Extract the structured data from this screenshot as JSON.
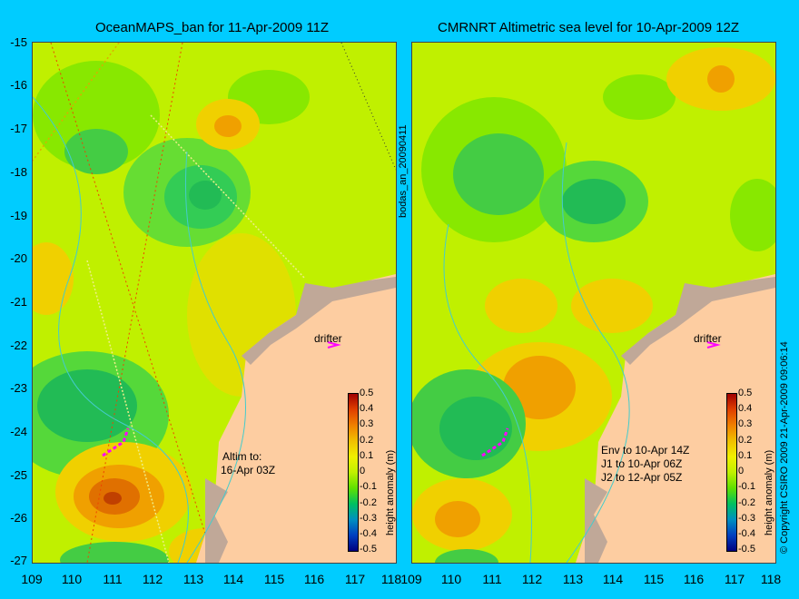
{
  "left_panel": {
    "title": "OceanMAPS_ban for 11-Apr-2009 11Z",
    "side_label": "bodas_an_20090411",
    "drifter_label": "drifter",
    "altim_label": "Altim to:",
    "altim_date": "16-Apr 03Z"
  },
  "right_panel": {
    "title": "CMRNRT Altimetric sea level  for 10-Apr-2009 12Z",
    "drifter_label": "drifter",
    "env_lines": [
      "Env to 10-Apr 14Z",
      "J1 to 10-Apr 06Z",
      "J2 to 12-Apr 05Z"
    ]
  },
  "axes": {
    "y_ticks": [
      "-15",
      "-16",
      "-17",
      "-18",
      "-19",
      "-20",
      "-21",
      "-22",
      "-23",
      "-24",
      "-25",
      "-26",
      "-27"
    ],
    "x_ticks_left": [
      "109",
      "110",
      "111",
      "112",
      "113",
      "114",
      "115",
      "116",
      "117",
      "118"
    ],
    "x_ticks_right": [
      "109",
      "110",
      "111",
      "112",
      "113",
      "114",
      "115",
      "116",
      "117",
      "118"
    ]
  },
  "colorbar": {
    "ticks": [
      "0.5",
      "0.4",
      "0.3",
      "0.2",
      "0.1",
      "0",
      "-0.1",
      "-0.2",
      "-0.3",
      "-0.4",
      "-0.5"
    ],
    "label": "height anomaly (m)"
  },
  "copyright": "© Copyright CSIRO 2009   21-Apr-2009 09:06:14",
  "colors": {
    "background": "#00ccff",
    "land": "#fdcda1",
    "coast_shelf": "#c0a898",
    "base_field": "#c0f000",
    "drifter": "#ff00ff"
  }
}
